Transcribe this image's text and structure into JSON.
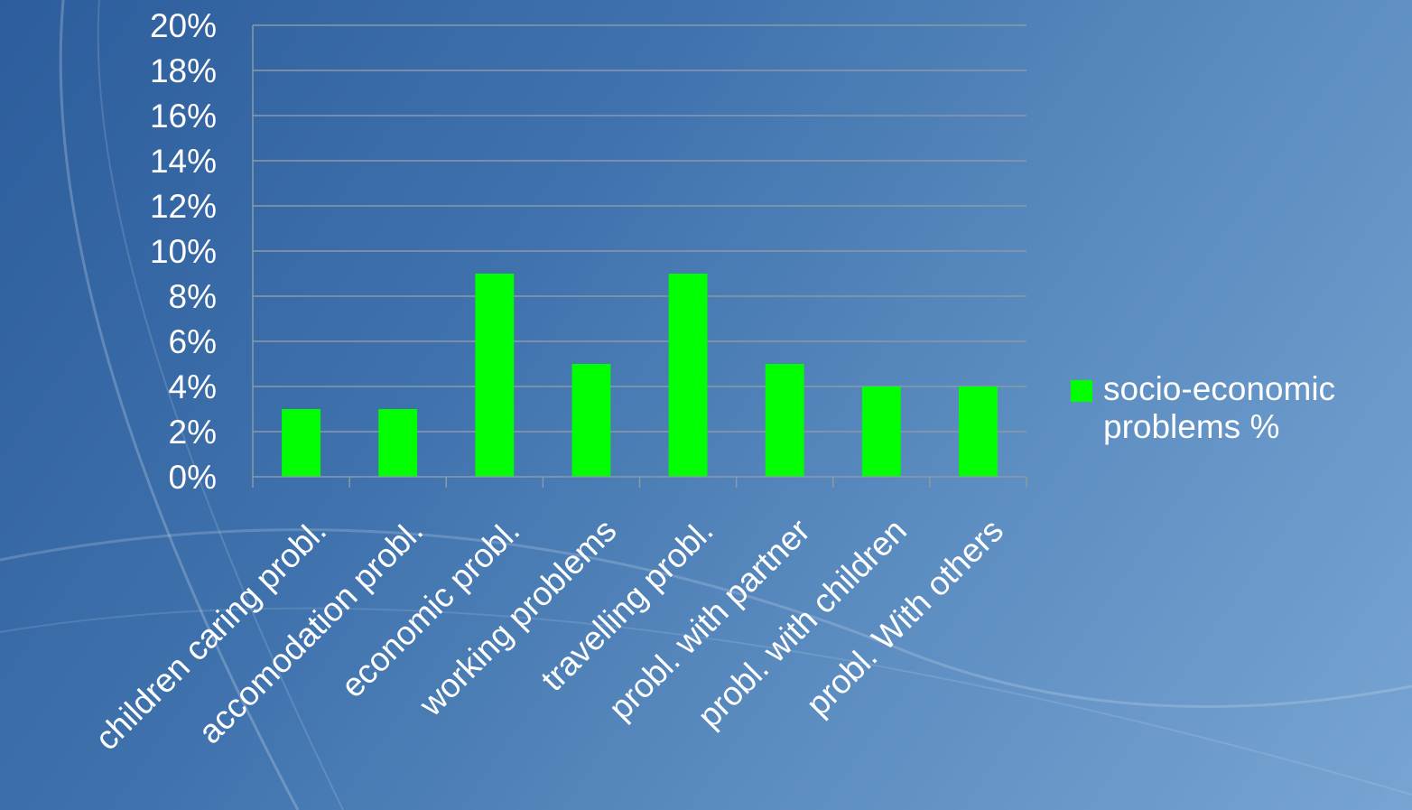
{
  "chart_data": {
    "type": "bar",
    "categories": [
      "children caring probl.",
      "accomodation probl.",
      "economic probl.",
      "working problems",
      "travelling probl.",
      "probl. with partner",
      "probl. with children",
      "probl. With others"
    ],
    "series": [
      {
        "name": "socio-economic problems %",
        "values": [
          3,
          3,
          9,
          5,
          9,
          5,
          4,
          4
        ],
        "color": "#00ff00"
      }
    ],
    "ylim": [
      0,
      20
    ],
    "ytick_step": 2,
    "ytick_format": "percent",
    "grid": true,
    "legend_position": "right",
    "gridline_color": "#8a9aa8",
    "text_color": "#ffffff"
  },
  "legend": {
    "label": "socio-economic problems %"
  }
}
